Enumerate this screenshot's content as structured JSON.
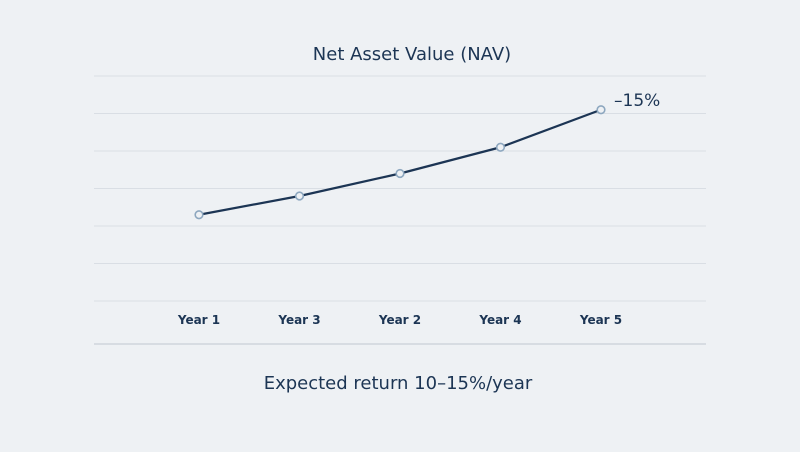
{
  "chart_data": {
    "type": "line",
    "title": "Net Asset Value (NAV)",
    "categories": [
      "Year 1",
      "Year 3",
      "Year 2",
      "Year 4",
      "Year 5"
    ],
    "series": [
      {
        "values": [
          2.3,
          2.8,
          3.4,
          4.1,
          5.1
        ]
      }
    ],
    "ylim": [
      0,
      6
    ],
    "grid": true,
    "annotation": "–15%",
    "caption": "Expected return 10–15%/year",
    "colors": {
      "line": "#1c3554",
      "marker": "#8da7bf",
      "background": "#eef1f4"
    }
  }
}
